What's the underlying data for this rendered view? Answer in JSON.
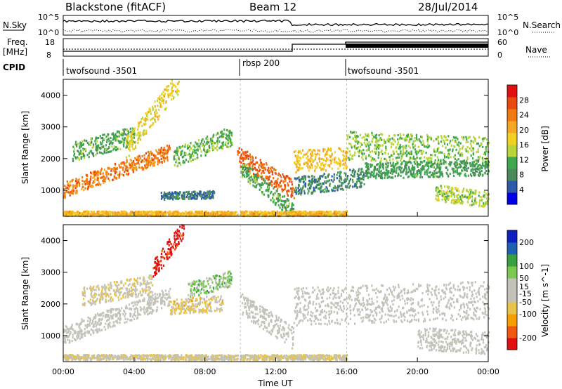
{
  "header": {
    "station": "Blackstone (fitACF)",
    "beam": "Beam 12",
    "date": "28/Jul/2014"
  },
  "noise_panel": {
    "left_label": "N.Sky",
    "right_label": "N.Search",
    "left_ticks": [
      "10^5",
      "10^0"
    ],
    "right_ticks": [
      "10^5",
      "10^0"
    ]
  },
  "freq_panel": {
    "left_label_line1": "Freq.",
    "left_label_line2": "[MHz]",
    "right_label": "Nave",
    "left_ticks": [
      "18",
      "8"
    ],
    "right_ticks": [
      "60",
      "0"
    ]
  },
  "cpid_panel": {
    "label": "CPID",
    "segments": [
      {
        "name": "twofsound -3501",
        "start_hour": 0,
        "end_hour": 10
      },
      {
        "name": "rbsp 200",
        "start_hour": 10,
        "end_hour": 16
      },
      {
        "name": "twofsound -3501",
        "start_hour": 16,
        "end_hour": 24
      }
    ]
  },
  "colors": {
    "power": [
      "#0000e6",
      "#2d5aa8",
      "#4a8a5a",
      "#3fa84f",
      "#b8d43a",
      "#f0d020",
      "#f5a623",
      "#f07a10",
      "#ea4a10",
      "#e01010"
    ],
    "velocity": [
      "#e01010",
      "#f05a10",
      "#f5a000",
      "#e8c44a",
      "#c2c2b8",
      "#c2c2b8",
      "#7ac850",
      "#38a040",
      "#2060b0",
      "#1020c0"
    ]
  },
  "chart_data": [
    {
      "type": "heatmap",
      "panel": "power",
      "title": "",
      "ylabel": "Slant Range [km]",
      "xlim": [
        0,
        24
      ],
      "ylim": [
        180,
        4500
      ],
      "yticks": [
        1000,
        2000,
        3000,
        4000
      ],
      "colorbar": {
        "label": "Power [dB]",
        "ticks": [
          4,
          8,
          12,
          16,
          20,
          24,
          28
        ],
        "range": [
          0,
          32
        ]
      },
      "echo_bands": [
        {
          "t0": 0.0,
          "r0": 1000,
          "t1": 6.0,
          "r1": 2200,
          "width": 250,
          "value": 24,
          "start_hour": 0.0,
          "end_hour": 6.0
        },
        {
          "t0": 0.5,
          "r0": 2200,
          "t1": 4.0,
          "r1": 2700,
          "width": 300,
          "value": 11,
          "start_hour": 0.5,
          "end_hour": 4.0
        },
        {
          "t0": 3.5,
          "r0": 2300,
          "t1": 6.5,
          "r1": 4400,
          "width": 350,
          "value": 17,
          "start_hour": 3.5,
          "end_hour": 6.5
        },
        {
          "t0": 6.2,
          "r0": 2000,
          "t1": 9.5,
          "r1": 2700,
          "width": 300,
          "value": 12,
          "start_hour": 6.2,
          "end_hour": 9.5
        },
        {
          "t0": 5.5,
          "r0": 800,
          "t1": 8.5,
          "r1": 850,
          "width": 120,
          "value": 7,
          "start_hour": 5.5,
          "end_hour": 8.5
        },
        {
          "t0": 9.8,
          "r0": 2100,
          "t1": 13.0,
          "r1": 1000,
          "width": 300,
          "value": 26,
          "start_hour": 9.8,
          "end_hour": 13.0
        },
        {
          "t0": 10.0,
          "r0": 1700,
          "t1": 13.0,
          "r1": 300,
          "width": 260,
          "value": 11,
          "start_hour": 10.0,
          "end_hour": 13.0
        },
        {
          "t0": 13.0,
          "r0": 1900,
          "t1": 16.0,
          "r1": 2000,
          "width": 350,
          "value": 19,
          "start_hour": 13.0,
          "end_hour": 16.0
        },
        {
          "t0": 13.0,
          "r0": 1100,
          "t1": 17.0,
          "r1": 1400,
          "width": 300,
          "value": 8,
          "start_hour": 13.0,
          "end_hour": 17.0
        },
        {
          "t0": 16.0,
          "r0": 2400,
          "t1": 24.0,
          "r1": 2200,
          "width": 450,
          "value": 13,
          "start_hour": 16.0,
          "end_hour": 24.0
        },
        {
          "t0": 17.0,
          "r0": 1600,
          "t1": 24.0,
          "r1": 1700,
          "width": 250,
          "value": 10,
          "start_hour": 17.0,
          "end_hour": 24.0
        },
        {
          "t0": 21.0,
          "r0": 900,
          "t1": 24.0,
          "r1": 700,
          "width": 250,
          "value": 14,
          "start_hour": 21.0,
          "end_hour": 24.0
        },
        {
          "t0": 0.0,
          "r0": 250,
          "t1": 16.0,
          "r1": 250,
          "width": 70,
          "value": 20,
          "start_hour": 0.0,
          "end_hour": 16.0
        }
      ]
    },
    {
      "type": "heatmap",
      "panel": "velocity",
      "title": "",
      "ylabel": "Slant Range [km]",
      "xlabel": "Time UT",
      "xlim": [
        0,
        24
      ],
      "ylim": [
        180,
        4500
      ],
      "yticks": [
        1000,
        2000,
        3000,
        4000
      ],
      "xticks": [
        "00:00",
        "04:00",
        "08:00",
        "12:00",
        "16:00",
        "20:00",
        "00:00"
      ],
      "colorbar": {
        "label": "Velocity [m s^-1]",
        "ticks": [
          -200,
          -100,
          -50,
          -15,
          15,
          50,
          100,
          200
        ],
        "range": [
          -250,
          250
        ]
      },
      "echo_bands": [
        {
          "t0": 0.0,
          "r0": 1000,
          "t1": 6.0,
          "r1": 2200,
          "width": 300,
          "value": 0,
          "start_hour": 0.0,
          "end_hour": 6.0
        },
        {
          "t0": 1.0,
          "r0": 2200,
          "t1": 5.0,
          "r1": 2600,
          "width": 300,
          "value": -40,
          "start_hour": 1.0,
          "end_hour": 5.0
        },
        {
          "t0": 5.0,
          "r0": 3000,
          "t1": 6.8,
          "r1": 4400,
          "width": 300,
          "value": -230,
          "start_hour": 5.0,
          "end_hour": 6.8
        },
        {
          "t0": 7.0,
          "r0": 2400,
          "t1": 9.5,
          "r1": 2800,
          "width": 250,
          "value": 70,
          "start_hour": 7.0,
          "end_hour": 9.5
        },
        {
          "t0": 6.0,
          "r0": 1900,
          "t1": 9.0,
          "r1": 2000,
          "width": 250,
          "value": -60,
          "start_hour": 6.0,
          "end_hour": 9.0
        },
        {
          "t0": 10.0,
          "r0": 2000,
          "t1": 13.0,
          "r1": 900,
          "width": 350,
          "value": 0,
          "start_hour": 10.0,
          "end_hour": 13.0
        },
        {
          "t0": 13.0,
          "r0": 1900,
          "t1": 24.0,
          "r1": 2100,
          "width": 600,
          "value": 0,
          "start_hour": 13.0,
          "end_hour": 24.0
        },
        {
          "t0": 20.0,
          "r0": 900,
          "t1": 24.0,
          "r1": 750,
          "width": 350,
          "value": 0,
          "start_hour": 20.0,
          "end_hour": 24.0
        },
        {
          "t0": 0.0,
          "r0": 300,
          "t1": 16.0,
          "r1": 300,
          "width": 80,
          "value": -40,
          "start_hour": 0.0,
          "end_hour": 16.0
        }
      ]
    }
  ]
}
